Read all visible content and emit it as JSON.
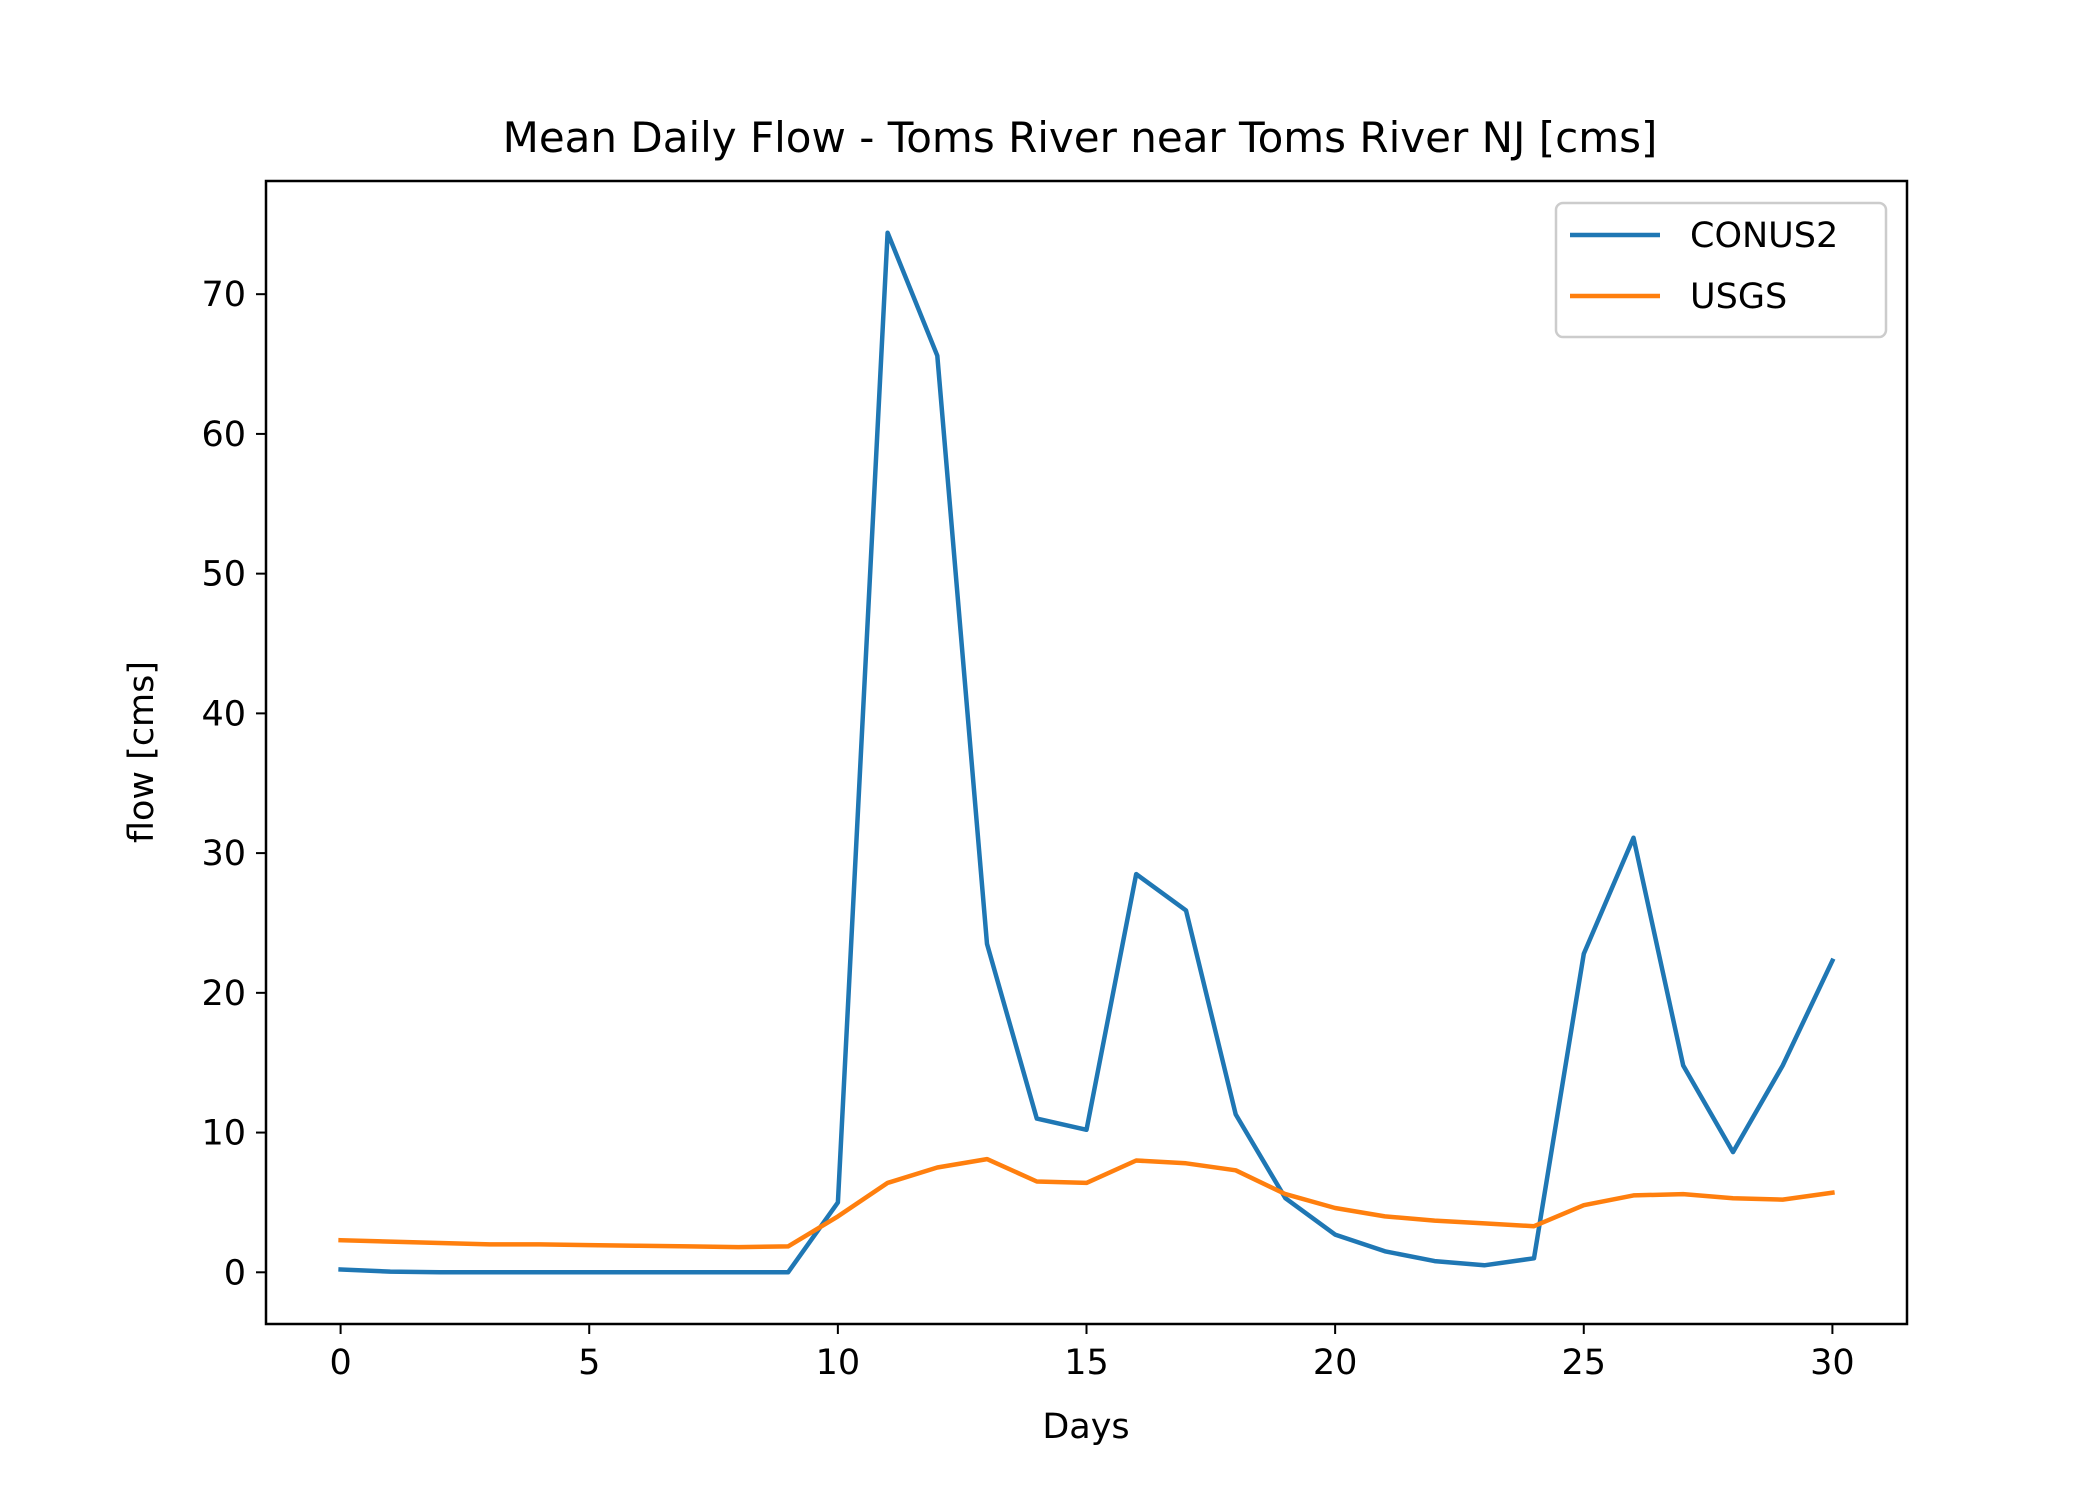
{
  "chart_data": {
    "type": "line",
    "title": "Mean Daily Flow - Toms River near Toms River NJ [cms]",
    "xlabel": "Days",
    "ylabel": "flow [cms]",
    "xlim": [
      -1.5,
      31.5
    ],
    "ylim": [
      -3.7,
      78.1
    ],
    "x_ticks": [
      0,
      5,
      10,
      15,
      20,
      25,
      30
    ],
    "y_ticks": [
      0,
      10,
      20,
      30,
      40,
      50,
      60,
      70
    ],
    "grid": false,
    "legend_position": "upper right",
    "x": [
      0,
      1,
      2,
      3,
      4,
      5,
      6,
      7,
      8,
      9,
      10,
      11,
      12,
      13,
      14,
      15,
      16,
      17,
      18,
      19,
      20,
      21,
      22,
      23,
      24,
      25,
      26,
      27,
      28,
      29,
      30
    ],
    "series": [
      {
        "name": "CONUS2",
        "color": "#1f77b4",
        "values": [
          0.2,
          0.05,
          0,
          0,
          0,
          0,
          0,
          0,
          0,
          0,
          5,
          74.4,
          65.6,
          23.5,
          11,
          10.2,
          28.5,
          25.9,
          11.3,
          5.3,
          2.7,
          1.5,
          0.8,
          0.5,
          1,
          22.8,
          31.1,
          14.8,
          8.6,
          14.8,
          22.3
        ]
      },
      {
        "name": "USGS",
        "color": "#ff7f0e",
        "values": [
          2.3,
          2.2,
          2.1,
          2.0,
          2.0,
          1.95,
          1.9,
          1.85,
          1.8,
          1.85,
          4.0,
          6.4,
          7.5,
          8.1,
          6.5,
          6.4,
          8.0,
          7.8,
          7.3,
          5.6,
          4.6,
          4.0,
          3.7,
          3.5,
          3.3,
          4.8,
          5.5,
          5.6,
          5.3,
          5.2,
          5.7
        ]
      }
    ]
  }
}
